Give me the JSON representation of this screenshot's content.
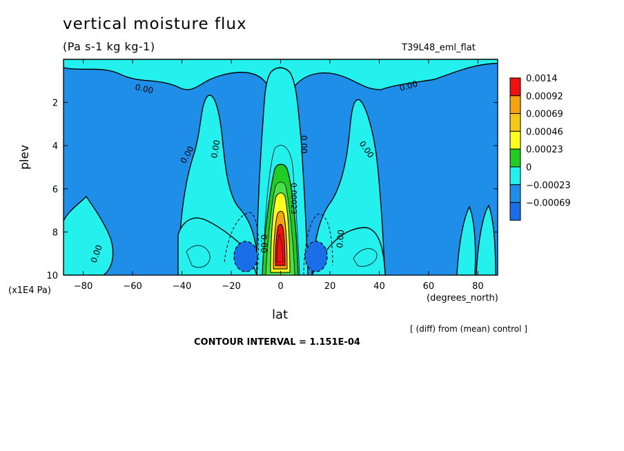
{
  "title": "vertical moisture flux",
  "units": "(Pa s-1 kg kg-1)",
  "run_label": "T39L48_eml_flat",
  "xunit_note": "(degrees_north)",
  "yunit_note": "(x1E4 Pa)",
  "diff_note": "[ (diff) from (mean) control ]",
  "contour_interval": "CONTOUR INTERVAL = 1.151E-04",
  "colors": {
    "background_field": "#1f8ee8",
    "light_cyan": "#24f0ee",
    "green": "#22cc22",
    "yellow": "#ffff22",
    "orange": "#f5a312",
    "red": "#ee1111",
    "dark_blue": "#1a6fe8"
  },
  "chart_data": {
    "type": "heatmap",
    "xlabel": "lat",
    "ylabel": "plev",
    "xlim": [
      -88,
      88
    ],
    "ylim": [
      10,
      0
    ],
    "xticks": [
      {
        "label": "−80",
        "value": -80
      },
      {
        "label": "−60",
        "value": -60
      },
      {
        "label": "−40",
        "value": -40
      },
      {
        "label": "−20",
        "value": -20
      },
      {
        "label": "0",
        "value": 0
      },
      {
        "label": "20",
        "value": 20
      },
      {
        "label": "40",
        "value": 40
      },
      {
        "label": "60",
        "value": 60
      },
      {
        "label": "80",
        "value": 80
      }
    ],
    "yticks": [
      {
        "label": "2",
        "value": 2
      },
      {
        "label": "4",
        "value": 4
      },
      {
        "label": "6",
        "value": 6
      },
      {
        "label": "8",
        "value": 8
      },
      {
        "label": "10",
        "value": 10
      }
    ],
    "colorbar": [
      {
        "label": "0.0014",
        "color": "#ee1111"
      },
      {
        "label": "0.00092",
        "color": "#f5a312"
      },
      {
        "label": "0.00069",
        "color": "#f5c81a"
      },
      {
        "label": "0.00046",
        "color": "#ffff22"
      },
      {
        "label": "0.00023",
        "color": "#22cc22"
      },
      {
        "label": "0",
        "color": "#24f0ee"
      },
      {
        "label": "−0.00023",
        "color": "#1f8ee8"
      },
      {
        "label": "−0.00069",
        "color": "#1a6fe8"
      }
    ],
    "contour_labels": [
      "0.00",
      "0.00",
      "0.00",
      "0.00",
      "0.00",
      "0.00",
      "0.00",
      "0.00",
      "0.00",
      "0.00023"
    ]
  }
}
